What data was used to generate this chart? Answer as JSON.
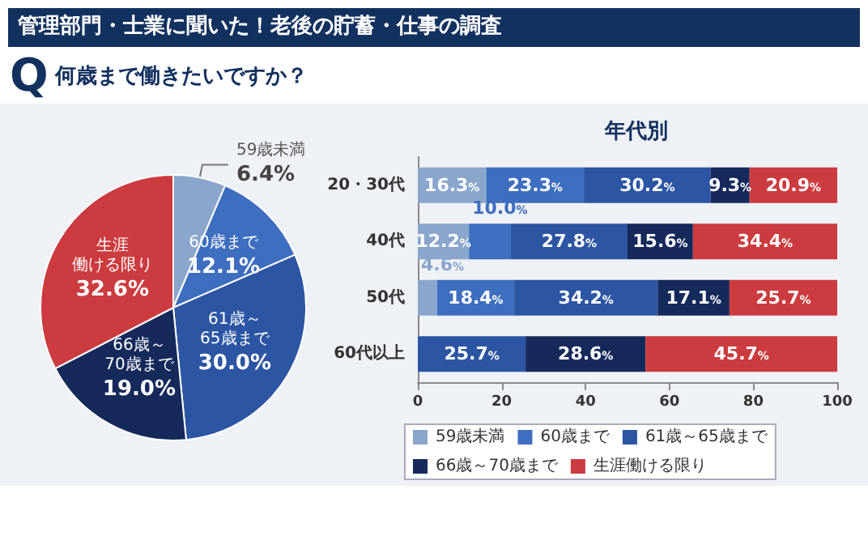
{
  "chart_data": [
    {
      "type": "pie",
      "title": "管理部門・士業に聞いた！老後の貯蓄・仕事の調査",
      "subtitle": "何歳まで働きたいですか？",
      "annotations": [
        "Q"
      ],
      "categories": [
        "59歳未満",
        "60歳まで",
        "61歳～65歳まで",
        "66歳～70歳まで",
        "生涯働ける限り"
      ],
      "values": [
        6.4,
        12.1,
        30.0,
        19.0,
        32.6
      ],
      "value_labels": [
        "6.4%",
        "12.1%",
        "30.0%",
        "19.0%",
        "32.6%"
      ],
      "colors": [
        "#8aa6cc",
        "#3e6ec0",
        "#2c55a3",
        "#15295b",
        "#cc3b3f"
      ],
      "legend": false
    },
    {
      "type": "bar",
      "title": "年代別",
      "orientation": "horizontal",
      "stacked": true,
      "categories": [
        "20・30代",
        "40代",
        "50代",
        "60代以上"
      ],
      "series": [
        {
          "name": "59歳未満",
          "color": "#8aa6cc",
          "values": [
            16.3,
            12.2,
            4.6,
            0
          ],
          "value_labels": [
            "16.3%",
            "12.2%",
            "4.6%",
            null
          ]
        },
        {
          "name": "60歳まで",
          "color": "#3e6ec0",
          "values": [
            23.3,
            10.0,
            18.4,
            0
          ],
          "value_labels": [
            "23.3%",
            "10.0%",
            "18.4%",
            null
          ]
        },
        {
          "name": "61歳～65歳まで",
          "color": "#2c55a3",
          "values": [
            30.2,
            27.8,
            34.2,
            25.7
          ],
          "value_labels": [
            "30.2%",
            "27.8%",
            "34.2%",
            "25.7%"
          ]
        },
        {
          "name": "66歳～70歳まで",
          "color": "#15295b",
          "values": [
            9.3,
            15.6,
            17.1,
            28.6
          ],
          "value_labels": [
            "9.3%",
            "15.6%",
            "17.1%",
            "28.6%"
          ]
        },
        {
          "name": "生涯働ける限り",
          "color": "#cc3b3f",
          "values": [
            20.9,
            34.4,
            25.7,
            45.7
          ],
          "value_labels": [
            "20.9%",
            "34.4%",
            "25.7%",
            "45.7%"
          ]
        }
      ],
      "xlim": [
        0,
        100
      ],
      "xticks": [
        0,
        20,
        40,
        60,
        80,
        100
      ],
      "grid": false,
      "legend": "bottom"
    }
  ]
}
